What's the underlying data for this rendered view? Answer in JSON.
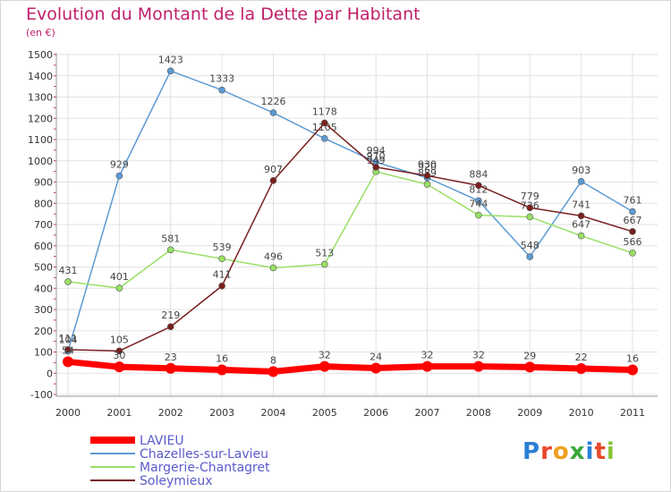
{
  "chart_data": {
    "type": "line",
    "title": "Evolution du Montant de la Dette par Habitant",
    "subtitle": "(en €)",
    "x": [
      "2000",
      "2001",
      "2002",
      "2003",
      "2004",
      "2005",
      "2006",
      "2007",
      "2008",
      "2009",
      "2010",
      "2011"
    ],
    "yticks": [
      -100,
      0,
      100,
      200,
      300,
      400,
      500,
      600,
      700,
      800,
      900,
      1000,
      1100,
      1200,
      1300,
      1400,
      1500
    ],
    "ylim": [
      -100,
      1500
    ],
    "grid": true,
    "legend_position": "bottom-left",
    "series": [
      {
        "name": "LAVIEU",
        "color": "#ff0000",
        "values": [
          54,
          30,
          23,
          16,
          8,
          32,
          24,
          32,
          32,
          29,
          22,
          16
        ]
      },
      {
        "name": "Chazelles-sur-Lavieu",
        "color": "#5b9bd5",
        "values": [
          104,
          929,
          1423,
          1333,
          1226,
          1105,
          994,
          920,
          812,
          548,
          903,
          761
        ]
      },
      {
        "name": "Margerie-Chantagret",
        "color": "#99e066",
        "values": [
          431,
          401,
          581,
          539,
          496,
          513,
          949,
          889,
          744,
          736,
          647,
          566
        ]
      },
      {
        "name": "Soleymieux",
        "color": "#7a1f1f",
        "values": [
          111,
          105,
          219,
          411,
          907,
          1178,
          970,
          930,
          884,
          779,
          741,
          667
        ]
      }
    ]
  },
  "logo": {
    "text": "Proxiti"
  }
}
